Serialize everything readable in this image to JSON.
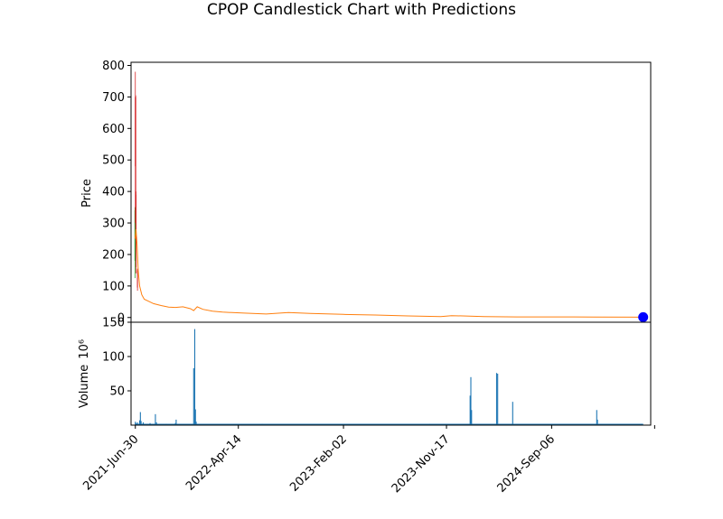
{
  "chart_data": [
    {
      "type": "line",
      "title": "CPOP Candlestick Chart with Predictions",
      "ylabel": "Price",
      "ylim": [
        -15,
        810
      ],
      "yticks": [
        0,
        100,
        200,
        300,
        400,
        500,
        600,
        700,
        800
      ],
      "x_date_range": [
        "2021-06-18",
        "2025-06-10"
      ],
      "candles": [
        {
          "date": "2021-06-29",
          "open": 180,
          "high": 350,
          "low": 125,
          "close": 340,
          "color": "#2ca02c"
        },
        {
          "date": "2021-06-30",
          "open": 480,
          "high": 780,
          "low": 300,
          "close": 700,
          "color": "#d62728"
        },
        {
          "date": "2021-07-01",
          "open": 700,
          "high": 705,
          "low": 250,
          "close": 400,
          "color": "#d62728"
        },
        {
          "date": "2021-07-02",
          "open": 390,
          "high": 400,
          "low": 140,
          "close": 160,
          "color": "#d62728"
        },
        {
          "date": "2021-07-06",
          "open": 150,
          "high": 155,
          "low": 85,
          "close": 95,
          "color": "#d62728"
        }
      ],
      "series": [
        {
          "color": "#ff7f0e",
          "points": [
            [
              "2021-06-29",
              250
            ],
            [
              "2021-07-02",
              280
            ],
            [
              "2021-07-05",
              230
            ],
            [
              "2021-07-08",
              150
            ],
            [
              "2021-07-12",
              100
            ],
            [
              "2021-07-18",
              72
            ],
            [
              "2021-07-25",
              58
            ],
            [
              "2021-08-05",
              52
            ],
            [
              "2021-08-20",
              44
            ],
            [
              "2021-09-10",
              38
            ],
            [
              "2021-10-01",
              33
            ],
            [
              "2021-10-20",
              32
            ],
            [
              "2021-11-10",
              34
            ],
            [
              "2021-12-01",
              28
            ],
            [
              "2021-12-10",
              22
            ],
            [
              "2021-12-20",
              34
            ],
            [
              "2022-01-05",
              26
            ],
            [
              "2022-02-01",
              20
            ],
            [
              "2022-03-01",
              17
            ],
            [
              "2022-05-01",
              14
            ],
            [
              "2022-07-01",
              11
            ],
            [
              "2022-09-01",
              16
            ],
            [
              "2022-11-01",
              13
            ],
            [
              "2023-02-01",
              10
            ],
            [
              "2023-05-01",
              8
            ],
            [
              "2023-08-01",
              5
            ],
            [
              "2023-11-01",
              3
            ],
            [
              "2023-12-01",
              6
            ],
            [
              "2024-03-01",
              3
            ],
            [
              "2024-06-01",
              2
            ],
            [
              "2024-09-01",
              2
            ],
            [
              "2025-01-01",
              1.5
            ],
            [
              "2025-05-20",
              1
            ]
          ]
        }
      ],
      "prediction_points": [
        {
          "date": "2025-05-20",
          "value": 1,
          "color": "#0000ff"
        }
      ]
    },
    {
      "type": "bar",
      "ylabel": "Volume",
      "ylabel_multiplier": "10⁶",
      "ylim": [
        0,
        150
      ],
      "yticks": [
        50,
        100,
        150
      ],
      "color": "#1f77b4",
      "x_date_range": [
        "2021-06-18",
        "2025-06-10"
      ],
      "xticks": [
        "2021-Jun-30",
        "2022-Apr-14",
        "2023-Feb-02",
        "2023-Nov-17",
        "2024-Sep-06",
        "2025-Jun-21"
      ],
      "xtick_labels": [
        "2021-Jun-30",
        "2022-Apr-14",
        "2023-Feb-02",
        "2023-Nov-17",
        "2024-Sep-06",
        ""
      ],
      "bars": [
        [
          "2021-06-30",
          5
        ],
        [
          "2021-07-02",
          3
        ],
        [
          "2021-07-06",
          4
        ],
        [
          "2021-07-12",
          7
        ],
        [
          "2021-07-14",
          19
        ],
        [
          "2021-07-16",
          6
        ],
        [
          "2021-07-22",
          4
        ],
        [
          "2021-08-10",
          3
        ],
        [
          "2021-08-25",
          16
        ],
        [
          "2021-08-28",
          4
        ],
        [
          "2021-09-25",
          2
        ],
        [
          "2021-10-20",
          3
        ],
        [
          "2021-10-22",
          8
        ],
        [
          "2021-12-08",
          2
        ],
        [
          "2021-12-10",
          83
        ],
        [
          "2021-12-13",
          140
        ],
        [
          "2021-12-15",
          23
        ],
        [
          "2021-12-17",
          5
        ],
        [
          "2022-06-20",
          2
        ],
        [
          "2023-05-01",
          1.5
        ],
        [
          "2023-10-01",
          2
        ],
        [
          "2024-01-22",
          43
        ],
        [
          "2024-01-24",
          70
        ],
        [
          "2024-01-26",
          22
        ],
        [
          "2024-04-05",
          76
        ],
        [
          "2024-04-08",
          75
        ],
        [
          "2024-05-20",
          34
        ],
        [
          "2025-01-10",
          22
        ],
        [
          "2025-01-12",
          8
        ],
        [
          "2025-05-01",
          1
        ]
      ]
    }
  ]
}
